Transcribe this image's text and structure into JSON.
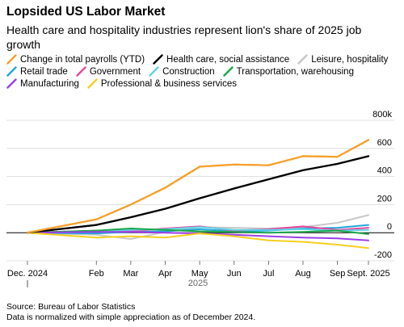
{
  "header": {
    "title": "Lopsided US Labor Market",
    "subtitle": "Health care and hospitality industries represent lion's share of 2025 job growth"
  },
  "footer": {
    "source": "Source: Bureau of Labor Statistics",
    "note": "Data is normalized with simple appreciation as of December 2024."
  },
  "chart_data": {
    "type": "line",
    "title": "Lopsided US Labor Market",
    "subtitle": "Health care and hospitality industries represent lion's share of 2025 job growth",
    "xlabel": "2025",
    "ylabel": "",
    "categories": [
      "Dec. 2024",
      "Feb",
      "Mar",
      "Apr",
      "May",
      "Jun",
      "Jul",
      "Aug",
      "Sep",
      "Sept. 2025"
    ],
    "x_months": [
      0,
      2,
      3,
      4,
      5,
      6,
      7,
      8,
      9,
      9.9
    ],
    "y_ticks": [
      -200,
      0,
      200,
      400,
      600,
      800
    ],
    "y_tick_labels": [
      "-200",
      "0",
      "200",
      "400",
      "600",
      "800k"
    ],
    "ylim": [
      -200,
      800
    ],
    "grid": true,
    "legend_position": "top",
    "series": [
      {
        "name": "Change in total payrolls (YTD)",
        "color": "#f5a02c",
        "points": [
          [
            0,
            0
          ],
          [
            1,
            95
          ],
          [
            2,
            200
          ],
          [
            3,
            320
          ],
          [
            4,
            470
          ],
          [
            5,
            485
          ],
          [
            6,
            480
          ],
          [
            7,
            545
          ],
          [
            8,
            540
          ],
          [
            9,
            660
          ]
        ]
      },
      {
        "name": "Health care, social assistance",
        "color": "#000000",
        "points": [
          [
            0,
            0
          ],
          [
            1,
            55
          ],
          [
            2,
            110
          ],
          [
            3,
            170
          ],
          [
            4,
            245
          ],
          [
            5,
            315
          ],
          [
            6,
            380
          ],
          [
            7,
            445
          ],
          [
            8,
            490
          ],
          [
            9,
            545
          ]
        ]
      },
      {
        "name": "Leisure, hospitality",
        "color": "#c8c8c8",
        "points": [
          [
            0,
            0
          ],
          [
            1,
            -15
          ],
          [
            2,
            -45
          ],
          [
            3,
            5
          ],
          [
            4,
            40
          ],
          [
            5,
            35
          ],
          [
            6,
            30
          ],
          [
            7,
            40
          ],
          [
            8,
            70
          ],
          [
            9,
            125
          ]
        ]
      },
      {
        "name": "Retail trade",
        "color": "#1fa8d8",
        "points": [
          [
            0,
            0
          ],
          [
            1,
            -5
          ],
          [
            2,
            5
          ],
          [
            3,
            10
          ],
          [
            4,
            25
          ],
          [
            5,
            10
          ],
          [
            6,
            15
          ],
          [
            7,
            30
          ],
          [
            8,
            35
          ],
          [
            9,
            55
          ]
        ]
      },
      {
        "name": "Government",
        "color": "#e8479b",
        "points": [
          [
            0,
            0
          ],
          [
            1,
            15
          ],
          [
            2,
            10
          ],
          [
            3,
            30
          ],
          [
            4,
            45
          ],
          [
            5,
            15
          ],
          [
            6,
            25
          ],
          [
            7,
            45
          ],
          [
            8,
            20
          ],
          [
            9,
            35
          ]
        ]
      },
      {
        "name": "Construction",
        "color": "#5fd3e8",
        "points": [
          [
            0,
            0
          ],
          [
            1,
            10
          ],
          [
            2,
            20
          ],
          [
            3,
            25
          ],
          [
            4,
            40
          ],
          [
            5,
            20
          ],
          [
            6,
            20
          ],
          [
            7,
            25
          ],
          [
            8,
            15
          ],
          [
            9,
            20
          ]
        ]
      },
      {
        "name": "Transportation, warehousing",
        "color": "#1aa64a",
        "points": [
          [
            0,
            0
          ],
          [
            1,
            15
          ],
          [
            2,
            30
          ],
          [
            3,
            20
          ],
          [
            4,
            10
          ],
          [
            5,
            5
          ],
          [
            6,
            0
          ],
          [
            7,
            5
          ],
          [
            8,
            15
          ],
          [
            9,
            -10
          ]
        ]
      },
      {
        "name": "Manufacturing",
        "color": "#9b3fe8",
        "points": [
          [
            0,
            0
          ],
          [
            1,
            5
          ],
          [
            2,
            5
          ],
          [
            3,
            0
          ],
          [
            4,
            -5
          ],
          [
            5,
            -15
          ],
          [
            6,
            -25
          ],
          [
            7,
            -35
          ],
          [
            8,
            -40
          ],
          [
            9,
            -55
          ]
        ]
      },
      {
        "name": "Professional & business services",
        "color": "#f5d020",
        "points": [
          [
            0,
            0
          ],
          [
            1,
            -35
          ],
          [
            2,
            -25
          ],
          [
            3,
            -35
          ],
          [
            4,
            -5
          ],
          [
            5,
            -25
          ],
          [
            6,
            -55
          ],
          [
            7,
            -65
          ],
          [
            8,
            -85
          ],
          [
            9,
            -110
          ]
        ]
      }
    ]
  }
}
